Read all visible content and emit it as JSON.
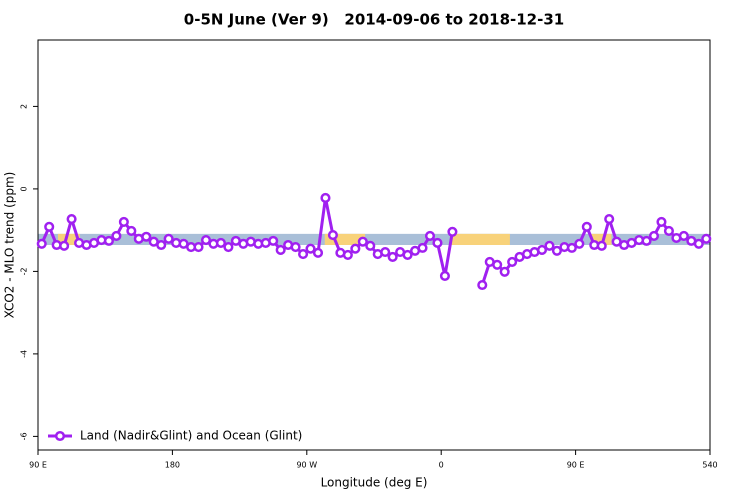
{
  "chart_data": {
    "type": "line",
    "title": "0-5N June (Ver 9)   2014-09-06 to 2018-12-31",
    "xlabel": "Longitude (deg E)",
    "ylabel": "XCO2 - MLO trend (ppm)",
    "xlim": [
      90,
      540
    ],
    "ylim": [
      -6.33,
      3.61
    ],
    "xticks": [
      {
        "value": 90,
        "label": "90 E"
      },
      180,
      {
        "value": 270,
        "label": "90 W"
      },
      {
        "value": 360,
        "label": "0"
      },
      {
        "value": 450,
        "label": "90 E"
      },
      540
    ],
    "yticks": [
      2,
      0,
      -2,
      -4,
      -6
    ],
    "legend": "bottom-left",
    "bands": [
      {
        "color": "#a9bfd8",
        "x": [
          90,
          540
        ],
        "y": [
          -1.36,
          -1.09
        ]
      },
      {
        "color": "#f8d27a",
        "x": [
          103.4,
          118
        ],
        "y": [
          -1.36,
          -1.09
        ]
      },
      {
        "color": "#f8d27a",
        "x": [
          282,
          309
        ],
        "y": [
          -1.36,
          -1.09
        ]
      },
      {
        "color": "#f8d27a",
        "x": [
          366,
          406
        ],
        "y": [
          -1.36,
          -1.09
        ]
      },
      {
        "color": "#f8d27a",
        "x": [
          460,
          474
        ],
        "y": [
          -1.36,
          -1.09
        ]
      }
    ],
    "x": [
      92.5,
      97.5,
      102.5,
      107.5,
      112.5,
      117.5,
      122.5,
      127.5,
      132.5,
      137.5,
      142.5,
      147.5,
      152.5,
      157.5,
      162.5,
      167.5,
      172.5,
      177.5,
      182.5,
      187.5,
      192.5,
      197.5,
      202.5,
      207.5,
      212.5,
      217.5,
      222.5,
      227.5,
      232.5,
      237.5,
      242.5,
      247.5,
      252.5,
      257.5,
      262.5,
      267.5,
      272.5,
      277.5,
      282.5,
      287.5,
      292.5,
      297.5,
      302.5,
      307.5,
      312.5,
      317.5,
      322.5,
      327.5,
      332.5,
      337.5,
      342.5,
      347.5,
      352.5,
      357.5,
      362.5,
      367.5,
      372.5,
      377.5,
      382.5,
      387.5,
      392.5,
      397.5,
      402.5,
      407.5,
      412.5,
      417.5,
      422.5,
      427.5,
      432.5,
      437.5,
      442.5,
      447.5,
      452.5,
      457.5,
      462.5,
      467.5,
      472.5,
      477.5,
      482.5,
      487.5,
      492.5,
      497.5,
      502.5,
      507.5,
      512.5,
      517.5,
      522.5,
      527.5,
      532.5,
      537.5
    ],
    "series": [
      {
        "name": "Land (Nadir&Glint) and Ocean (Glint)",
        "color": "#a020f0",
        "values": [
          -1.33,
          -0.92,
          -1.36,
          -1.38,
          -0.73,
          -1.31,
          -1.36,
          -1.31,
          -1.24,
          -1.26,
          -1.14,
          -0.8,
          -1.02,
          -1.21,
          -1.16,
          -1.28,
          -1.36,
          -1.21,
          -1.31,
          -1.33,
          -1.41,
          -1.41,
          -1.24,
          -1.33,
          -1.31,
          -1.41,
          -1.26,
          -1.33,
          -1.28,
          -1.33,
          -1.31,
          -1.26,
          -1.48,
          -1.36,
          -1.41,
          -1.58,
          -1.45,
          -1.55,
          -0.22,
          -1.12,
          -1.55,
          -1.6,
          -1.45,
          -1.28,
          -1.38,
          -1.58,
          -1.53,
          -1.65,
          -1.53,
          -1.6,
          -1.5,
          -1.43,
          -1.14,
          -1.31,
          -2.11,
          -1.04,
          null,
          null,
          null,
          -2.33,
          -1.77,
          -1.84,
          -2.01,
          -1.77,
          -1.65,
          -1.58,
          -1.53,
          -1.48,
          -1.38,
          -1.5,
          -1.41,
          -1.43,
          -1.33,
          -0.92,
          -1.36,
          -1.38,
          -0.73,
          -1.28,
          -1.36,
          -1.31,
          -1.24,
          -1.26,
          -1.14,
          -0.8,
          -1.02,
          -1.19,
          -1.14,
          -1.26,
          -1.33,
          -1.21
        ]
      }
    ]
  }
}
